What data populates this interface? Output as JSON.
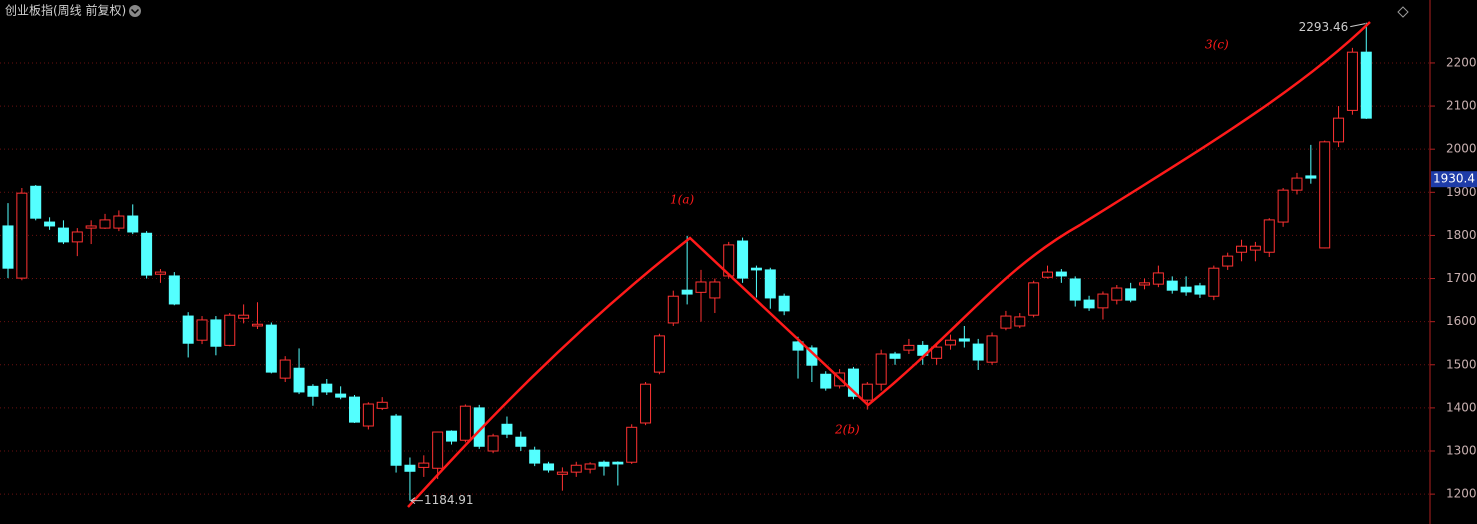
{
  "chart_data": {
    "type": "candlestick",
    "title": "创业板指(周线 前复权)",
    "ylim": [
      1140,
      2346
    ],
    "yticks": [
      1200,
      1300,
      1400,
      1500,
      1600,
      1700,
      1800,
      1900,
      2000,
      2100,
      2200
    ],
    "grid": true,
    "up_color": "#ff3232",
    "down_color": "#54ffff",
    "price_marker": 1930.4,
    "annotations": [
      "1(a)",
      "2(b)",
      "3(c)"
    ],
    "open": [
      1822,
      1701,
      1914,
      1831,
      1817,
      1785,
      1817,
      1817,
      1817,
      1845,
      1805,
      1710,
      1706,
      1613,
      1557,
      1604,
      1545,
      1608,
      1590,
      1592,
      1469,
      1492,
      1450,
      1455,
      1432,
      1425,
      1358,
      1399,
      1381,
      1267,
      1262,
      1260,
      1346,
      1325,
      1400,
      1300,
      1362,
      1332,
      1302,
      1270,
      1246,
      1251,
      1258,
      1274,
      1274,
      1274,
      1365,
      1483,
      1597,
      1673,
      1668,
      1655,
      1706,
      1787,
      1724,
      1720,
      1659,
      1553,
      1539,
      1478,
      1451,
      1490,
      1418,
      1455,
      1525,
      1534,
      1545,
      1515,
      1546,
      1560,
      1548,
      1506,
      1585,
      1590,
      1615,
      1703,
      1715,
      1699,
      1650,
      1632,
      1650,
      1676,
      1685,
      1687,
      1694,
      1680,
      1683,
      1659,
      1729,
      1761,
      1766,
      1761,
      1831,
      1905,
      1938,
      1771,
      2017,
      2090,
      2225
    ],
    "high": [
      1875,
      1910,
      1917,
      1842,
      1835,
      1817,
      1835,
      1850,
      1858,
      1872,
      1810,
      1722,
      1715,
      1622,
      1613,
      1613,
      1620,
      1640,
      1645,
      1598,
      1520,
      1538,
      1455,
      1467,
      1450,
      1430,
      1413,
      1425,
      1386,
      1285,
      1290,
      1345,
      1348,
      1408,
      1407,
      1340,
      1380,
      1345,
      1310,
      1275,
      1262,
      1275,
      1274,
      1278,
      1276,
      1362,
      1460,
      1572,
      1672,
      1799,
      1720,
      1700,
      1785,
      1795,
      1730,
      1725,
      1665,
      1565,
      1545,
      1485,
      1490,
      1495,
      1460,
      1535,
      1530,
      1560,
      1555,
      1550,
      1570,
      1590,
      1560,
      1575,
      1625,
      1620,
      1695,
      1730,
      1722,
      1705,
      1660,
      1670,
      1685,
      1690,
      1700,
      1730,
      1705,
      1705,
      1690,
      1730,
      1760,
      1790,
      1785,
      1840,
      1910,
      1945,
      2010,
      2020,
      2100,
      2235,
      2293.46
    ],
    "low": [
      1701,
      1696,
      1835,
      1813,
      1780,
      1752,
      1780,
      1815,
      1810,
      1803,
      1700,
      1690,
      1638,
      1517,
      1548,
      1522,
      1543,
      1596,
      1583,
      1480,
      1460,
      1432,
      1405,
      1430,
      1420,
      1365,
      1350,
      1395,
      1250,
      1184.91,
      1240,
      1235,
      1315,
      1320,
      1305,
      1295,
      1330,
      1300,
      1265,
      1250,
      1208,
      1240,
      1248,
      1243,
      1220,
      1270,
      1360,
      1478,
      1590,
      1640,
      1600,
      1620,
      1700,
      1690,
      1656,
      1630,
      1615,
      1468,
      1460,
      1440,
      1445,
      1420,
      1396,
      1440,
      1500,
      1525,
      1500,
      1500,
      1535,
      1540,
      1488,
      1500,
      1580,
      1585,
      1610,
      1700,
      1690,
      1635,
      1625,
      1605,
      1640,
      1645,
      1675,
      1680,
      1665,
      1660,
      1655,
      1650,
      1720,
      1740,
      1740,
      1750,
      1820,
      1895,
      1920,
      1770,
      2005,
      2080,
      2070
    ],
    "close": [
      1724,
      1898,
      1840,
      1822,
      1785,
      1808,
      1822,
      1836,
      1845,
      1808,
      1708,
      1715,
      1641,
      1550,
      1604,
      1543,
      1615,
      1615,
      1594,
      1483,
      1511,
      1437,
      1427,
      1437,
      1425,
      1367,
      1409,
      1413,
      1267,
      1253,
      1272,
      1344,
      1323,
      1404,
      1311,
      1335,
      1339,
      1311,
      1272,
      1256,
      1251,
      1267,
      1270,
      1265,
      1270,
      1355,
      1455,
      1567,
      1659,
      1664,
      1692,
      1692,
      1778,
      1701,
      1720,
      1655,
      1625,
      1534,
      1499,
      1446,
      1481,
      1427,
      1455,
      1525,
      1515,
      1545,
      1522,
      1541,
      1557,
      1555,
      1511,
      1567,
      1613,
      1611,
      1690,
      1715,
      1706,
      1650,
      1632,
      1664,
      1678,
      1650,
      1690,
      1713,
      1673,
      1669,
      1664,
      1724,
      1752,
      1775,
      1775,
      1836,
      1905,
      1933,
      1933,
      2017,
      2072,
      2225,
      2072
    ]
  }
}
